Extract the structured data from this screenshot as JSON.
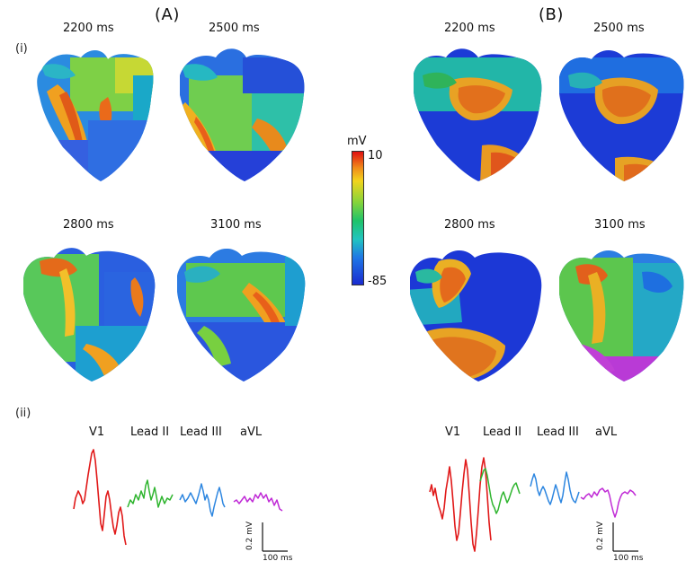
{
  "panels": {
    "A": {
      "title": "(A)"
    },
    "B": {
      "title": "(B)"
    }
  },
  "section_labels": {
    "i": "(i)",
    "ii": "(ii)"
  },
  "time_labels": [
    "2200 ms",
    "2500 ms",
    "2800 ms",
    "3100 ms"
  ],
  "colorbar": {
    "unit": "mV",
    "max_label": "10",
    "min_label": "-85",
    "colors": [
      "#e01010",
      "#f08a1a",
      "#f2d41c",
      "#86d43a",
      "#1fc36a",
      "#21c4c0",
      "#1f76e6",
      "#1a2bd0"
    ]
  },
  "leads": {
    "names": [
      "V1",
      "Lead II",
      "Lead III",
      "aVL"
    ],
    "colors": [
      "#e11a1a",
      "#2fb52f",
      "#2d86e0",
      "#c02bd6"
    ]
  },
  "scalebar": {
    "voltage": "0.2 mV",
    "time": "100 ms"
  }
}
